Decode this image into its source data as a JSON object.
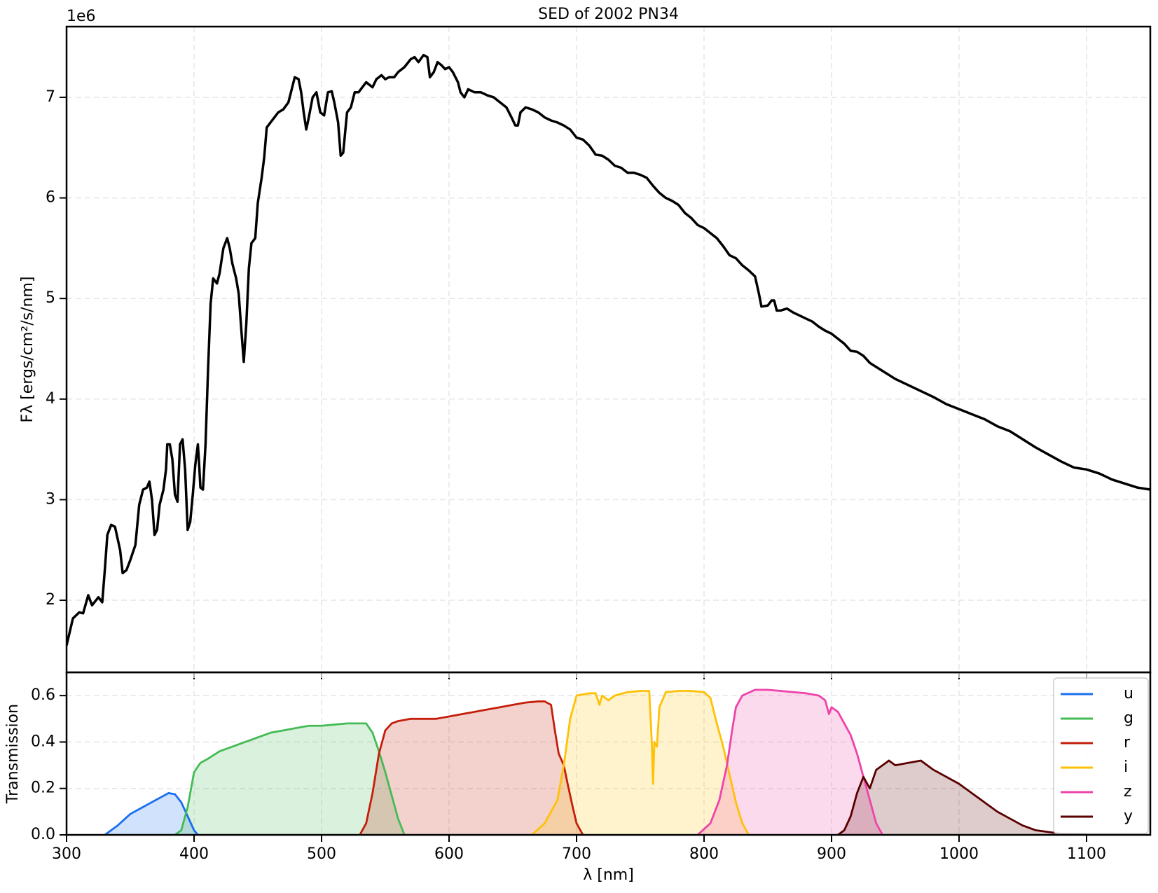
{
  "chart_data": [
    {
      "type": "line",
      "title": "SED of 2002 PN34",
      "ylabel": "Fλ [ergs/cm²/s/nm]",
      "y_offset_label": "1e6",
      "color": "#000000",
      "x": [
        300,
        305,
        310,
        313,
        317,
        320,
        325,
        328,
        330,
        332,
        335,
        338,
        342,
        344,
        347,
        350,
        354,
        357,
        360,
        363,
        365,
        367,
        369,
        371,
        373,
        376,
        378,
        379,
        381,
        383,
        385,
        387,
        389,
        391,
        393,
        395,
        397,
        399,
        401,
        403,
        404,
        405,
        407,
        409,
        411,
        413,
        415,
        418,
        420,
        423,
        426,
        428,
        430,
        433,
        435,
        437,
        439,
        441,
        443,
        445,
        448,
        450,
        453,
        455,
        457,
        460,
        463,
        466,
        470,
        474,
        477,
        479,
        482,
        484,
        486,
        488,
        490,
        493,
        496,
        499,
        502,
        505,
        508,
        510,
        513,
        515,
        517,
        520,
        523,
        526,
        529,
        532,
        535,
        540,
        543,
        547,
        550,
        553,
        557,
        560,
        565,
        570,
        573,
        576,
        580,
        583,
        585,
        588,
        591,
        594,
        597,
        600,
        603,
        607,
        609,
        612,
        615,
        620,
        625,
        630,
        635,
        640,
        645,
        649,
        652,
        654,
        656,
        660,
        665,
        670,
        675,
        680,
        685,
        690,
        695,
        700,
        705,
        710,
        715,
        720,
        725,
        730,
        735,
        740,
        745,
        750,
        755,
        760,
        765,
        770,
        775,
        780,
        785,
        790,
        795,
        800,
        805,
        810,
        815,
        820,
        825,
        830,
        835,
        840,
        843,
        845,
        850,
        853,
        855,
        857,
        860,
        865,
        870,
        875,
        880,
        885,
        890,
        895,
        900,
        905,
        910,
        915,
        920,
        925,
        930,
        935,
        940,
        945,
        950,
        960,
        970,
        980,
        990,
        1000,
        1010,
        1020,
        1030,
        1040,
        1050,
        1060,
        1070,
        1080,
        1090,
        1100,
        1110,
        1120,
        1130,
        1140,
        1150
      ],
      "values": [
        1.55,
        1.82,
        1.88,
        1.87,
        2.05,
        1.95,
        2.03,
        1.98,
        2.3,
        2.65,
        2.75,
        2.73,
        2.5,
        2.27,
        2.3,
        2.4,
        2.55,
        2.95,
        3.1,
        3.12,
        3.18,
        3.0,
        2.65,
        2.7,
        2.95,
        3.1,
        3.3,
        3.55,
        3.55,
        3.4,
        3.05,
        2.98,
        3.55,
        3.6,
        3.3,
        2.7,
        2.78,
        3.05,
        3.35,
        3.55,
        3.35,
        3.12,
        3.1,
        3.55,
        4.3,
        4.95,
        5.2,
        5.15,
        5.25,
        5.5,
        5.6,
        5.5,
        5.35,
        5.2,
        5.05,
        4.7,
        4.37,
        4.75,
        5.3,
        5.55,
        5.6,
        5.95,
        6.2,
        6.4,
        6.7,
        6.75,
        6.8,
        6.85,
        6.88,
        6.95,
        7.1,
        7.2,
        7.18,
        7.05,
        6.85,
        6.68,
        6.8,
        7.0,
        7.05,
        6.85,
        6.82,
        7.05,
        7.06,
        6.95,
        6.75,
        6.42,
        6.45,
        6.85,
        6.9,
        7.05,
        7.05,
        7.1,
        7.15,
        7.1,
        7.18,
        7.22,
        7.18,
        7.2,
        7.2,
        7.25,
        7.3,
        7.38,
        7.4,
        7.35,
        7.42,
        7.4,
        7.2,
        7.25,
        7.35,
        7.32,
        7.28,
        7.3,
        7.25,
        7.15,
        7.05,
        7.0,
        7.08,
        7.05,
        7.05,
        7.02,
        7.0,
        6.95,
        6.9,
        6.8,
        6.72,
        6.72,
        6.85,
        6.9,
        6.88,
        6.85,
        6.8,
        6.77,
        6.75,
        6.72,
        6.68,
        6.6,
        6.58,
        6.52,
        6.43,
        6.42,
        6.38,
        6.32,
        6.3,
        6.25,
        6.25,
        6.23,
        6.2,
        6.12,
        6.05,
        6.0,
        5.97,
        5.93,
        5.85,
        5.8,
        5.73,
        5.7,
        5.65,
        5.6,
        5.52,
        5.43,
        5.4,
        5.33,
        5.28,
        5.22,
        5.05,
        4.92,
        4.93,
        4.98,
        4.98,
        4.88,
        4.88,
        4.9,
        4.86,
        4.83,
        4.8,
        4.77,
        4.72,
        4.68,
        4.65,
        4.6,
        4.55,
        4.48,
        4.47,
        4.43,
        4.36,
        4.32,
        4.28,
        4.24,
        4.2,
        4.14,
        4.08,
        4.02,
        3.95,
        3.9,
        3.85,
        3.8,
        3.73,
        3.68,
        3.6,
        3.52,
        3.45,
        3.38,
        3.32,
        3.3,
        3.26,
        3.2,
        3.16,
        3.12,
        3.1
      ],
      "xlim": [
        300,
        1150
      ],
      "xticks": [
        300,
        400,
        500,
        600,
        700,
        800,
        900,
        1000,
        1100
      ],
      "ylim": [
        1.283,
        7.703
      ],
      "yticks": [
        2,
        3,
        4,
        5,
        6,
        7
      ],
      "grid": true
    },
    {
      "type": "area",
      "xlabel": "λ [nm]",
      "ylabel": "Transmission",
      "legend": "upper right",
      "series": [
        {
          "name": "u",
          "color": "#1a6fef",
          "x": [
            330,
            340,
            350,
            360,
            370,
            375,
            380,
            385,
            390,
            395,
            400,
            403
          ],
          "values": [
            0,
            0.04,
            0.09,
            0.12,
            0.15,
            0.165,
            0.18,
            0.175,
            0.14,
            0.08,
            0.02,
            0
          ]
        },
        {
          "name": "g",
          "color": "#44bb55",
          "x": [
            385,
            390,
            395,
            400,
            405,
            410,
            420,
            430,
            440,
            450,
            460,
            470,
            480,
            490,
            500,
            510,
            520,
            530,
            535,
            540,
            545,
            550,
            555,
            560,
            565
          ],
          "values": [
            0,
            0.02,
            0.12,
            0.27,
            0.31,
            0.325,
            0.36,
            0.38,
            0.4,
            0.42,
            0.44,
            0.45,
            0.46,
            0.47,
            0.47,
            0.475,
            0.48,
            0.48,
            0.48,
            0.44,
            0.36,
            0.27,
            0.17,
            0.07,
            0
          ]
        },
        {
          "name": "r",
          "color": "#c41e0a",
          "x": [
            530,
            535,
            540,
            545,
            550,
            555,
            560,
            570,
            580,
            590,
            600,
            610,
            620,
            630,
            640,
            650,
            660,
            670,
            675,
            680,
            683,
            686,
            690,
            693,
            697,
            700,
            705
          ],
          "values": [
            0,
            0.05,
            0.18,
            0.35,
            0.45,
            0.48,
            0.49,
            0.5,
            0.5,
            0.5,
            0.51,
            0.52,
            0.53,
            0.54,
            0.55,
            0.56,
            0.57,
            0.575,
            0.575,
            0.56,
            0.45,
            0.35,
            0.3,
            0.22,
            0.12,
            0.05,
            0
          ]
        },
        {
          "name": "i",
          "color": "#ffc107",
          "x": [
            665,
            675,
            685,
            690,
            695,
            700,
            710,
            715,
            718,
            720,
            725,
            730,
            740,
            750,
            757,
            759,
            760,
            761,
            763,
            765,
            770,
            780,
            790,
            800,
            805,
            810,
            815,
            820,
            825,
            830,
            835
          ],
          "values": [
            0,
            0.05,
            0.15,
            0.3,
            0.5,
            0.6,
            0.61,
            0.61,
            0.56,
            0.6,
            0.58,
            0.6,
            0.615,
            0.62,
            0.62,
            0.4,
            0.22,
            0.4,
            0.38,
            0.55,
            0.615,
            0.62,
            0.62,
            0.615,
            0.59,
            0.48,
            0.38,
            0.26,
            0.14,
            0.05,
            0
          ]
        },
        {
          "name": "z",
          "color": "#ee44aa",
          "x": [
            795,
            805,
            812,
            818,
            822,
            825,
            830,
            840,
            850,
            860,
            870,
            880,
            890,
            895,
            898,
            900,
            905,
            910,
            915,
            920,
            925,
            930,
            935,
            940
          ],
          "values": [
            0,
            0.05,
            0.15,
            0.3,
            0.45,
            0.55,
            0.6,
            0.625,
            0.625,
            0.62,
            0.615,
            0.61,
            0.6,
            0.58,
            0.52,
            0.55,
            0.53,
            0.48,
            0.43,
            0.35,
            0.25,
            0.15,
            0.05,
            0
          ]
        },
        {
          "name": "y",
          "color": "#5a0000",
          "x": [
            905,
            910,
            915,
            920,
            925,
            930,
            935,
            940,
            945,
            950,
            960,
            970,
            980,
            990,
            1000,
            1010,
            1020,
            1030,
            1040,
            1050,
            1060,
            1080,
            1100
          ],
          "values": [
            0,
            0.02,
            0.08,
            0.18,
            0.25,
            0.2,
            0.28,
            0.3,
            0.32,
            0.3,
            0.31,
            0.32,
            0.28,
            0.25,
            0.22,
            0.18,
            0.14,
            0.1,
            0.07,
            0.04,
            0.02,
            0.005,
            0
          ]
        }
      ],
      "xlim": [
        300,
        1150
      ],
      "xticks": [
        300,
        400,
        500,
        600,
        700,
        800,
        900,
        1000,
        1100
      ],
      "ylim": [
        0,
        0.7
      ],
      "yticks": [
        {
          "value": 0,
          "label": "0.0"
        },
        0.2,
        0.4,
        0.6
      ],
      "grid": true
    }
  ]
}
